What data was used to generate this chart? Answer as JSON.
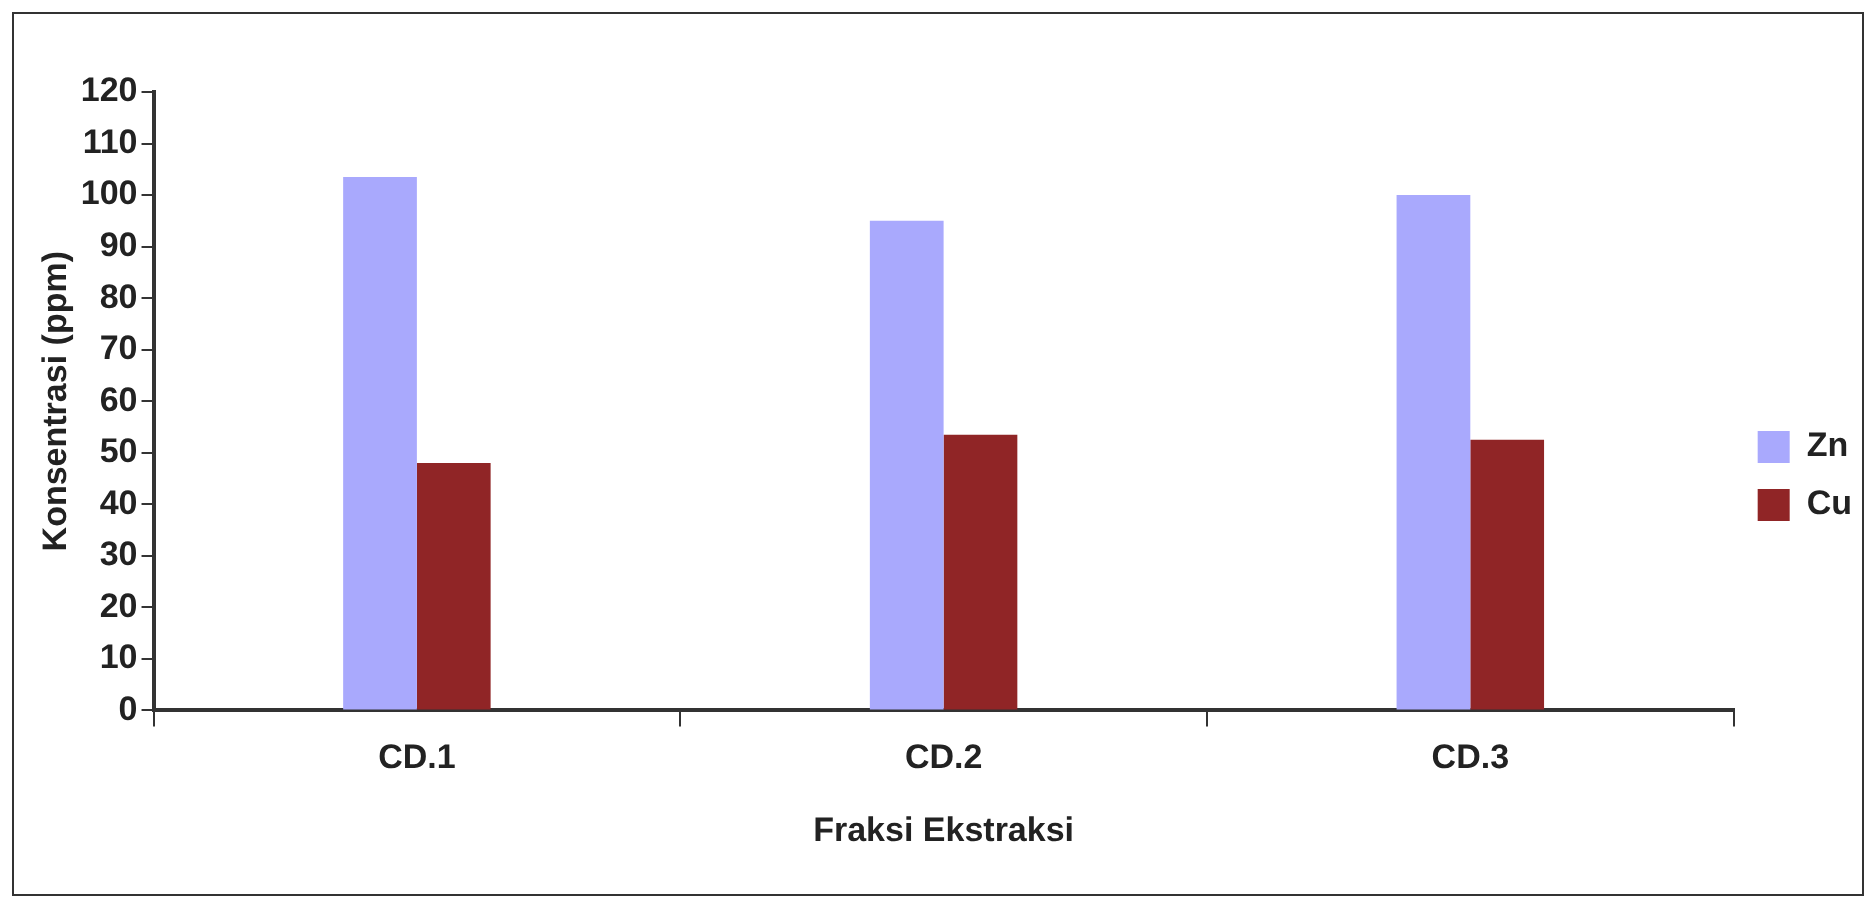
{
  "chart_data": {
    "type": "bar",
    "xlabel": "Fraksi Ekstraksi",
    "ylabel": "Konsentrasi (ppm)",
    "categories": [
      "CD.1",
      "CD.2",
      "CD.3"
    ],
    "series": [
      {
        "name": "Zn",
        "color": "#a9a9fd",
        "values": [
          103.5,
          95,
          100
        ]
      },
      {
        "name": "Cu",
        "color": "#902526",
        "values": [
          48,
          53.5,
          52.5
        ]
      }
    ],
    "ylim": [
      0,
      120
    ],
    "yticks": [
      0,
      10,
      20,
      30,
      40,
      50,
      60,
      70,
      80,
      90,
      100,
      110,
      120
    ],
    "grid": false,
    "legend": "right"
  }
}
